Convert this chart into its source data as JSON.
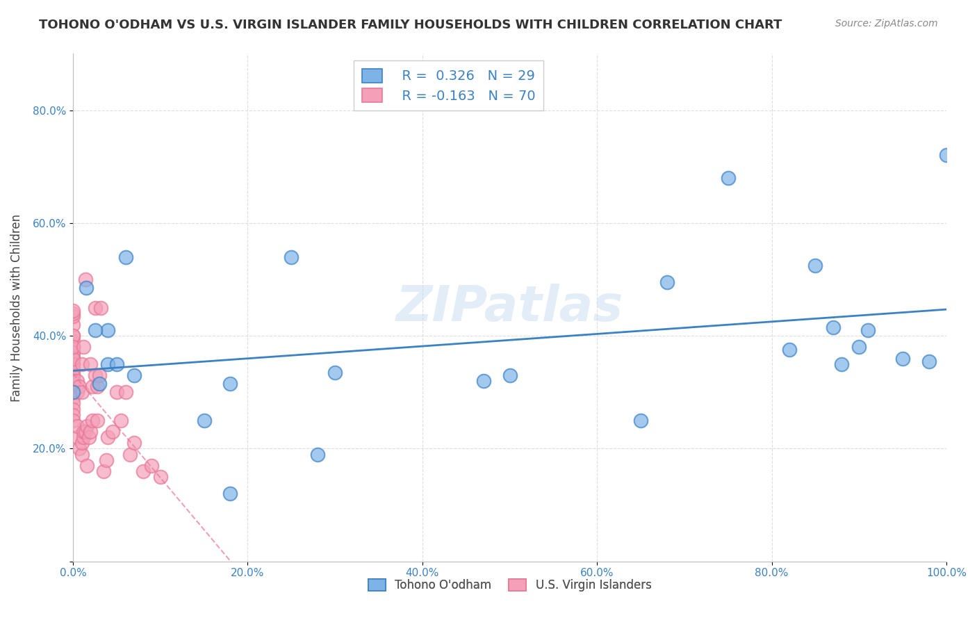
{
  "title": "TOHONO O'ODHAM VS U.S. VIRGIN ISLANDER FAMILY HOUSEHOLDS WITH CHILDREN CORRELATION CHART",
  "source": "Source: ZipAtlas.com",
  "xlabel_bottom": "",
  "ylabel": "Family Households with Children",
  "watermark": "ZIPatlas",
  "legend_bottom": [
    "Tohono O'odham",
    "U.S. Virgin Islanders"
  ],
  "blue_R": "R =  0.326",
  "blue_N": "N = 29",
  "pink_R": "R = -0.163",
  "pink_N": "N = 70",
  "blue_color": "#7EB3E8",
  "pink_color": "#F4A0B8",
  "blue_line_color": "#3B82C4",
  "pink_line_color": "#E87898",
  "xlim": [
    0.0,
    1.0
  ],
  "ylim": [
    0.0,
    0.9
  ],
  "xticks": [
    0.0,
    0.2,
    0.4,
    0.6,
    0.8,
    1.0
  ],
  "yticks": [
    0.0,
    0.2,
    0.4,
    0.6,
    0.8
  ],
  "xtick_labels": [
    "0.0%",
    "20.0%",
    "40.0%",
    "60.0%",
    "80.0%",
    "100.0%"
  ],
  "ytick_labels": [
    "",
    "20.0%",
    "40.0%",
    "60.0%",
    "80.0%"
  ],
  "blue_scatter_x": [
    0.0,
    0.015,
    0.04,
    0.06,
    0.04,
    0.025,
    0.03,
    0.05,
    0.07,
    0.18,
    0.25,
    0.47,
    0.65,
    0.75,
    0.85,
    0.87,
    0.9,
    0.95,
    0.98,
    1.0,
    0.82,
    0.88,
    0.91,
    0.68,
    0.3,
    0.28,
    0.15,
    0.18,
    0.5
  ],
  "blue_scatter_y": [
    0.3,
    0.485,
    0.41,
    0.54,
    0.35,
    0.41,
    0.315,
    0.35,
    0.33,
    0.315,
    0.54,
    0.32,
    0.25,
    0.68,
    0.525,
    0.415,
    0.38,
    0.36,
    0.355,
    0.72,
    0.375,
    0.35,
    0.41,
    0.495,
    0.335,
    0.19,
    0.25,
    0.12,
    0.33
  ],
  "pink_scatter_x": [
    0.0,
    0.0,
    0.0,
    0.0,
    0.0,
    0.0,
    0.0,
    0.0,
    0.0,
    0.0,
    0.0,
    0.0,
    0.0,
    0.0,
    0.0,
    0.0,
    0.0,
    0.0,
    0.0,
    0.0,
    0.0,
    0.0,
    0.0,
    0.0,
    0.0,
    0.0,
    0.0,
    0.0,
    0.0,
    0.0,
    0.005,
    0.005,
    0.005,
    0.005,
    0.007,
    0.007,
    0.01,
    0.01,
    0.01,
    0.01,
    0.012,
    0.012,
    0.012,
    0.014,
    0.014,
    0.016,
    0.016,
    0.018,
    0.02,
    0.02,
    0.022,
    0.022,
    0.025,
    0.025,
    0.028,
    0.028,
    0.03,
    0.032,
    0.035,
    0.038,
    0.04,
    0.045,
    0.05,
    0.055,
    0.06,
    0.065,
    0.07,
    0.08,
    0.09,
    0.1
  ],
  "pink_scatter_y": [
    0.3,
    0.32,
    0.34,
    0.35,
    0.36,
    0.37,
    0.38,
    0.39,
    0.4,
    0.33,
    0.31,
    0.29,
    0.28,
    0.27,
    0.26,
    0.38,
    0.42,
    0.435,
    0.44,
    0.445,
    0.36,
    0.37,
    0.4,
    0.34,
    0.33,
    0.32,
    0.35,
    0.36,
    0.38,
    0.25,
    0.22,
    0.24,
    0.32,
    0.3,
    0.31,
    0.2,
    0.19,
    0.21,
    0.3,
    0.35,
    0.22,
    0.23,
    0.38,
    0.5,
    0.23,
    0.24,
    0.17,
    0.22,
    0.23,
    0.35,
    0.31,
    0.25,
    0.33,
    0.45,
    0.31,
    0.25,
    0.33,
    0.45,
    0.16,
    0.18,
    0.22,
    0.23,
    0.3,
    0.25,
    0.3,
    0.19,
    0.21,
    0.16,
    0.17,
    0.15
  ],
  "background_color": "#FFFFFF",
  "grid_color": "#DDDDDD"
}
